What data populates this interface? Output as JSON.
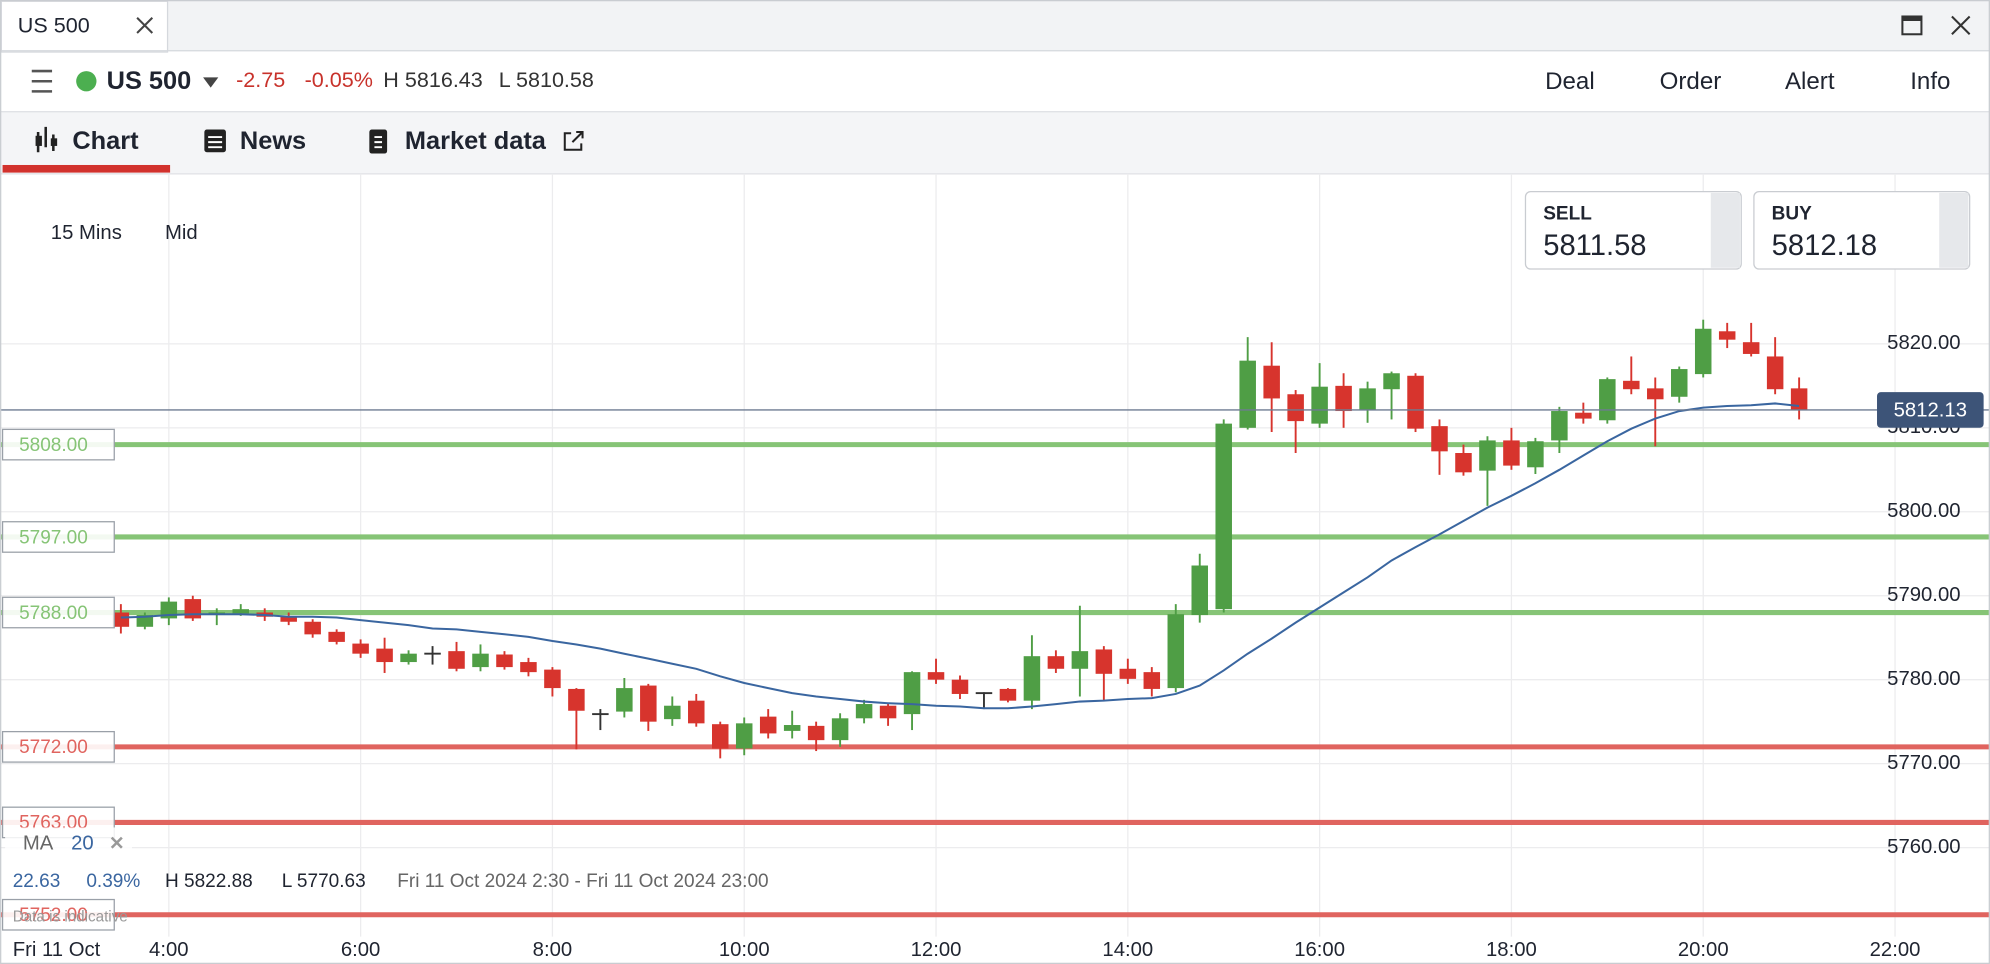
{
  "window": {
    "tab_title": "US 500"
  },
  "header": {
    "instrument": "US 500",
    "change": "-2.75",
    "change_pct": "-0.05%",
    "high": "H 5816.43",
    "low": "L 5810.58",
    "actions": [
      "Deal",
      "Order",
      "Alert",
      "Info"
    ]
  },
  "tabs": [
    "Chart",
    "News",
    "Market data"
  ],
  "chart_data": {
    "type": "candlestick",
    "interval": "15 Mins",
    "price_type": "Mid",
    "sell": {
      "label": "SELL",
      "value": "5811.58"
    },
    "buy": {
      "label": "BUY",
      "value": "5812.18"
    },
    "x": [
      3.5,
      3.75,
      4,
      4.25,
      4.5,
      4.75,
      5,
      5.25,
      5.5,
      5.75,
      6,
      6.25,
      6.5,
      6.75,
      7,
      7.25,
      7.5,
      7.75,
      8,
      8.25,
      8.5,
      8.75,
      9,
      9.25,
      9.5,
      9.75,
      10,
      10.25,
      10.5,
      10.75,
      11,
      11.25,
      11.5,
      11.75,
      12,
      12.25,
      12.5,
      12.75,
      13,
      13.25,
      13.5,
      13.75,
      14,
      14.25,
      14.5,
      14.75,
      15,
      15.25,
      15.5,
      15.75,
      16,
      16.25,
      16.5,
      16.75,
      17,
      17.25,
      17.5,
      17.75,
      18,
      18.25,
      18.5,
      18.75,
      19,
      19.25,
      19.5,
      19.75,
      20,
      20.25,
      20.5,
      20.75,
      21
    ],
    "open": [
      5788.0,
      5786.3,
      5787.3,
      5789.6,
      5787.8,
      5787.9,
      5788.0,
      5787.5,
      5786.9,
      5785.7,
      5784.3,
      5783.7,
      5782.1,
      5783.1,
      5783.4,
      5781.5,
      5783.0,
      5782.1,
      5781.2,
      5778.9,
      5775.9,
      5776.2,
      5779.3,
      5775.3,
      5777.5,
      5774.7,
      5771.8,
      5775.6,
      5773.9,
      5774.5,
      5772.8,
      5775.4,
      5776.9,
      5775.9,
      5780.9,
      5780.0,
      5778.4,
      5778.9,
      5777.5,
      5782.8,
      5781.3,
      5783.6,
      5781.3,
      5780.9,
      5779.0,
      5787.7,
      5788.4,
      5810.0,
      5817.4,
      5814.0,
      5810.5,
      5815.0,
      5812.1,
      5814.6,
      5816.2,
      5810.2,
      5807.0,
      5804.9,
      5808.5,
      5805.3,
      5808.5,
      5811.8,
      5810.9,
      5815.6,
      5814.7,
      5813.7,
      5816.4,
      5821.5,
      5820.2,
      5818.5,
      5814.7
    ],
    "high": [
      5789,
      5788,
      5789.8,
      5790,
      5788.5,
      5789,
      5788.5,
      5788,
      5787.2,
      5786,
      5784.8,
      5785,
      5783.5,
      5784,
      5784.5,
      5784.2,
      5783.4,
      5782.6,
      5781.5,
      5779,
      5776.5,
      5780.2,
      5779.5,
      5778,
      5778.3,
      5775,
      5775.5,
      5776.5,
      5776.3,
      5775,
      5776,
      5777.6,
      5777.2,
      5781,
      5782.5,
      5780.5,
      5778.5,
      5779,
      5785.3,
      5783.5,
      5788.8,
      5784,
      5782.5,
      5781.5,
      5789,
      5795,
      5811,
      5820.8,
      5820.2,
      5814.5,
      5817.7,
      5816.5,
      5815.5,
      5816.7,
      5816.5,
      5811,
      5808,
      5809,
      5810,
      5808.8,
      5812.5,
      5813,
      5816,
      5818.5,
      5816,
      5817.3,
      5822.88,
      5822.5,
      5822.5,
      5820.8,
      5816
    ],
    "low": [
      5785.5,
      5786,
      5786.5,
      5787,
      5786.5,
      5787.6,
      5787,
      5786.5,
      5785,
      5784.2,
      5782.6,
      5780.8,
      5781.8,
      5781.8,
      5781,
      5781,
      5781.2,
      5780.4,
      5778,
      5771.7,
      5774,
      5775.5,
      5773.9,
      5774.5,
      5774.4,
      5770.63,
      5771,
      5773,
      5773,
      5771.5,
      5772,
      5774.8,
      5774.5,
      5774,
      5779.5,
      5777.7,
      5776.5,
      5777.3,
      5776.5,
      5780.8,
      5778,
      5777.5,
      5779.5,
      5778,
      5778.5,
      5786.8,
      5788,
      5809.8,
      5809.5,
      5807,
      5810,
      5810,
      5810.6,
      5811,
      5809.5,
      5804.4,
      5804.3,
      5800.7,
      5805,
      5804.5,
      5807,
      5810.5,
      5810.5,
      5814,
      5807.8,
      5813,
      5816,
      5819.5,
      5818.5,
      5814,
      5811
    ],
    "close": [
      5786.3,
      5787.7,
      5789.3,
      5787.3,
      5787.9,
      5788.4,
      5787.5,
      5786.9,
      5785.4,
      5784.5,
      5783.1,
      5782.1,
      5783.1,
      5783.1,
      5781.3,
      5783.1,
      5781.5,
      5780.9,
      5779.0,
      5776.3,
      5775.9,
      5779.0,
      5775.0,
      5776.9,
      5774.8,
      5771.8,
      5774.8,
      5773.6,
      5774.6,
      5772.8,
      5775.4,
      5777.1,
      5775.4,
      5780.9,
      5780.0,
      5778.3,
      5778.4,
      5777.5,
      5782.8,
      5781.3,
      5783.4,
      5780.7,
      5780.1,
      5778.9,
      5787.8,
      5793.6,
      5810.5,
      5818.0,
      5813.5,
      5810.8,
      5814.9,
      5812.0,
      5814.7,
      5816.5,
      5809.9,
      5807.2,
      5804.7,
      5808.5,
      5805.5,
      5808.4,
      5812.0,
      5811.1,
      5815.8,
      5814.6,
      5813.4,
      5817.0,
      5821.8,
      5820.5,
      5818.8,
      5814.6,
      5812.13
    ],
    "colors": {
      "up": "#4f9e45",
      "down": "#d7342d",
      "doji": "#333333"
    },
    "ma": {
      "name": "MA",
      "period": 20,
      "color": "#3a66a0",
      "values": [
        5787.4,
        5787.5,
        5787.7,
        5787.8,
        5787.8,
        5787.8,
        5787.7,
        5787.5,
        5787.5,
        5787.4,
        5787.1,
        5786.8,
        5786.5,
        5786.1,
        5786.0,
        5785.7,
        5785.4,
        5785.1,
        5784.6,
        5784.2,
        5783.7,
        5783.1,
        5782.5,
        5781.9,
        5781.3,
        5780.4,
        5779.6,
        5779.0,
        5778.4,
        5778.0,
        5777.7,
        5777.4,
        5777.2,
        5777.1,
        5776.9,
        5776.8,
        5776.6,
        5776.6,
        5776.8,
        5777.1,
        5777.4,
        5777.5,
        5777.7,
        5777.8,
        5778.3,
        5779.3,
        5781.1,
        5783.1,
        5784.9,
        5786.8,
        5788.6,
        5790.4,
        5792.2,
        5794.2,
        5795.8,
        5797.3,
        5798.9,
        5800.5,
        5801.9,
        5803.4,
        5805.0,
        5806.7,
        5808.4,
        5809.9,
        5811.1,
        5812.0,
        5812.4,
        5812.6,
        5812.7,
        5812.9,
        5812.6
      ]
    },
    "levels": [
      {
        "value": 5808,
        "label": "5808.00",
        "color": "#86c476"
      },
      {
        "value": 5797,
        "label": "5797.00",
        "color": "#86c476"
      },
      {
        "value": 5788,
        "label": "5788.00",
        "color": "#86c476"
      },
      {
        "value": 5772,
        "label": "5772.00",
        "color": "#e0645f"
      },
      {
        "value": 5763,
        "label": "5763.00",
        "color": "#e0645f"
      },
      {
        "value": 5752,
        "label": "5752.00",
        "color": "#e0645f"
      }
    ],
    "current_price": {
      "value": 5812.13,
      "label": "5812.13"
    },
    "xlim": [
      2.24,
      22.99
    ],
    "xticks": [
      {
        "value": 4,
        "label": "4:00"
      },
      {
        "value": 6,
        "label": "6:00"
      },
      {
        "value": 8,
        "label": "8:00"
      },
      {
        "value": 10,
        "label": "10:00"
      },
      {
        "value": 12,
        "label": "12:00"
      },
      {
        "value": 14,
        "label": "14:00"
      },
      {
        "value": 16,
        "label": "16:00"
      },
      {
        "value": 18,
        "label": "18:00"
      },
      {
        "value": 20,
        "label": "20:00"
      },
      {
        "value": 22,
        "label": "22:00"
      }
    ],
    "ylim": [
      5749.4,
      5840.25
    ],
    "yticks": [
      {
        "value": 5760,
        "label": "5760.00"
      },
      {
        "value": 5770,
        "label": "5770.00"
      },
      {
        "value": 5780,
        "label": "5780.00"
      },
      {
        "value": 5790,
        "label": "5790.00"
      },
      {
        "value": 5800,
        "label": "5800.00"
      },
      {
        "value": 5810,
        "label": "5810.00"
      },
      {
        "value": 5820,
        "label": "5820.00"
      }
    ],
    "grid": true,
    "stats": {
      "change": "22.63",
      "change_pct": "0.39%",
      "high": "H 5822.88",
      "low": "L 5770.63",
      "range": "Fri 11 Oct 2024 2:30 - Fri 11 Oct 2024 23:00"
    },
    "note": "Data is indicative",
    "date_label": "Fri 11 Oct"
  }
}
